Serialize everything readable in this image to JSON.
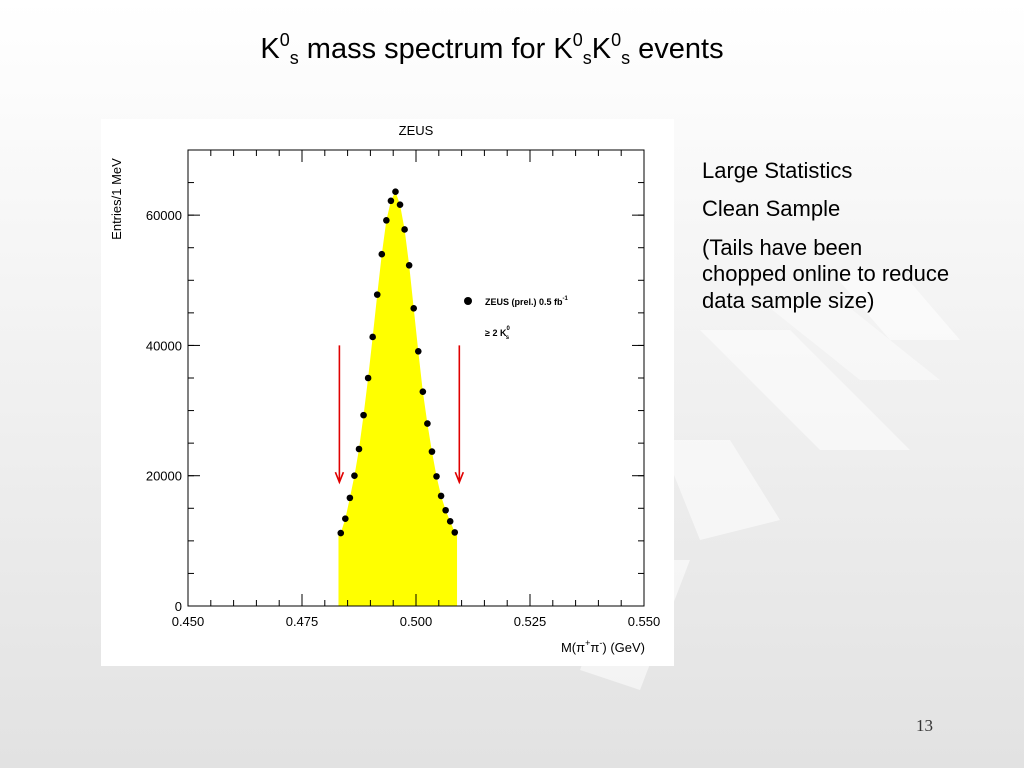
{
  "slide": {
    "title_parts": [
      "K",
      "0",
      "s",
      " mass spectrum for K",
      "0",
      "s",
      "K",
      "0",
      "s",
      " events"
    ],
    "notes": [
      "Large Statistics",
      "Clean Sample",
      "(Tails have been chopped online to reduce data sample size)"
    ],
    "page_number": "13"
  },
  "chart_data": {
    "type": "scatter",
    "title": "ZEUS",
    "xlabel_parts": [
      "M(",
      "π",
      "+",
      "π",
      "-",
      ") (GeV)"
    ],
    "ylabel": "Entries/1 MeV",
    "xlim": [
      0.45,
      0.55
    ],
    "ylim": [
      0,
      70000
    ],
    "x_ticks": [
      "0.450",
      "0.475",
      "0.500",
      "0.525",
      "0.550"
    ],
    "x_tick_values": [
      0.45,
      0.475,
      0.5,
      0.525,
      0.55
    ],
    "y_ticks": [
      "0",
      "20000",
      "40000",
      "60000"
    ],
    "y_tick_values": [
      0,
      20000,
      40000,
      60000
    ],
    "legend": {
      "position": "right",
      "entries": [
        {
          "label_parts": [
            "ZEUS (prel.) 0.5 fb",
            "-1"
          ],
          "marker": "dot"
        },
        {
          "label_parts": [
            "≥ 2 K",
            "0",
            "s"
          ],
          "marker": "none"
        }
      ]
    },
    "series": [
      {
        "name": "ZEUS (prel.) 0.5 fb-1",
        "x": [
          0.4835,
          0.4845,
          0.4855,
          0.4865,
          0.4875,
          0.4885,
          0.4895,
          0.4905,
          0.4915,
          0.4925,
          0.4935,
          0.4945,
          0.4955,
          0.4965,
          0.4975,
          0.4985,
          0.4995,
          0.5005,
          0.5015,
          0.5025,
          0.5035,
          0.5045,
          0.5055,
          0.5065,
          0.5075,
          0.5085
        ],
        "y": [
          11200,
          13400,
          16600,
          20000,
          24100,
          29300,
          35000,
          41300,
          47800,
          54000,
          59200,
          62200,
          63600,
          61600,
          57800,
          52300,
          45700,
          39100,
          32900,
          28000,
          23700,
          19900,
          16900,
          14700,
          13000,
          11300
        ]
      }
    ],
    "fill": {
      "color": "#ffff00",
      "x_range": [
        0.483,
        0.509
      ]
    },
    "cut_arrows": {
      "x": [
        0.4832,
        0.5095
      ],
      "y_from": 40000,
      "y_to": 19000,
      "color": "#e00000"
    },
    "grid": false
  }
}
